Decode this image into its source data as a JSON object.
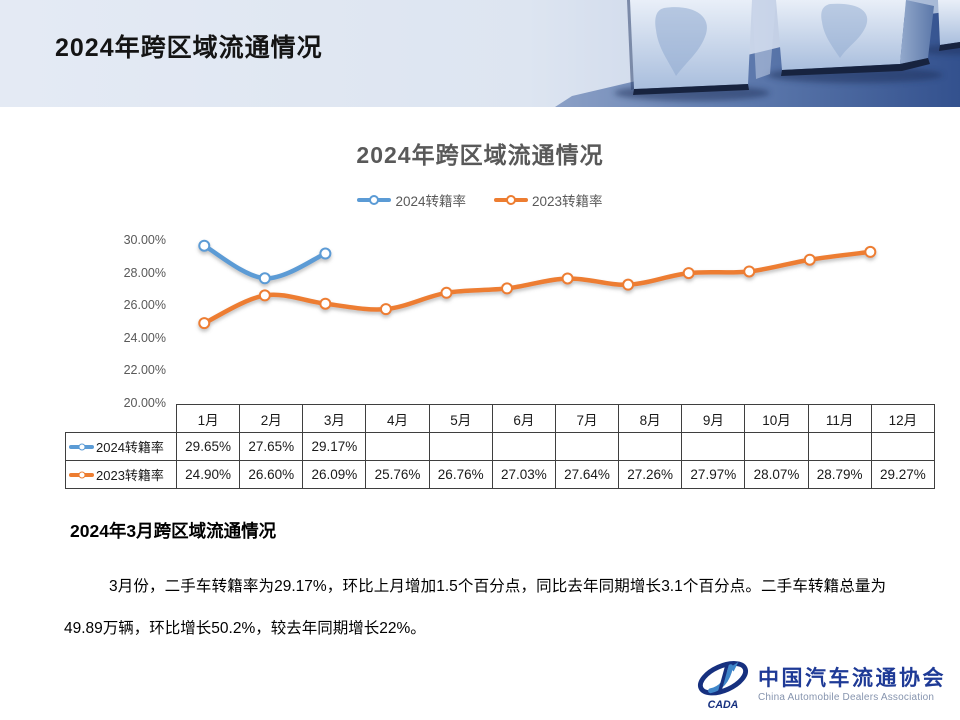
{
  "header": {
    "title": "2024年跨区域流通情况"
  },
  "chart": {
    "title": "2024年跨区域流通情况"
  },
  "chart_data": {
    "type": "line",
    "title": "2024年跨区域流通情况",
    "categories": [
      "1月",
      "2月",
      "3月",
      "4月",
      "5月",
      "6月",
      "7月",
      "8月",
      "9月",
      "10月",
      "11月",
      "12月"
    ],
    "series": [
      {
        "name": "2024转籍率",
        "color": "#5B9BD5",
        "values": [
          29.65,
          27.65,
          29.17,
          null,
          null,
          null,
          null,
          null,
          null,
          null,
          null,
          null
        ]
      },
      {
        "name": "2023转籍率",
        "color": "#ED7D31",
        "values": [
          24.9,
          26.6,
          26.09,
          25.76,
          26.76,
          27.03,
          27.64,
          27.26,
          27.97,
          28.07,
          28.79,
          29.27
        ]
      }
    ],
    "ylim": [
      20,
      30
    ],
    "yticks": [
      "30.00%",
      "28.00%",
      "26.00%",
      "24.00%",
      "22.00%",
      "20.00%"
    ],
    "grid": false,
    "smooth": true,
    "legend_position": "top"
  },
  "table": {
    "columns": [
      "1月",
      "2月",
      "3月",
      "4月",
      "5月",
      "6月",
      "7月",
      "8月",
      "9月",
      "10月",
      "11月",
      "12月"
    ],
    "rows": [
      {
        "label": "2024转籍率",
        "color": "#5B9BD5",
        "values": [
          "29.65%",
          "27.65%",
          "29.17%",
          "",
          "",
          "",
          "",
          "",
          "",
          "",
          "",
          ""
        ]
      },
      {
        "label": "2023转籍率",
        "color": "#ED7D31",
        "values": [
          "24.90%",
          "26.60%",
          "26.09%",
          "25.76%",
          "26.76%",
          "27.03%",
          "27.64%",
          "27.26%",
          "27.97%",
          "28.07%",
          "28.79%",
          "29.27%"
        ]
      }
    ]
  },
  "section": {
    "heading": "2024年3月跨区域流通情况",
    "paragraph": "3月份，二手车转籍率为29.17%，环比上月增加1.5个百分点，同比去年同期增长3.1个百分点。二手车转籍总量为49.89万辆，环比增长50.2%，较去年同期增长22%。"
  },
  "logo": {
    "emblem_text": "CADA",
    "name_cn": "中国汽车流通协会",
    "name_en": "China Automobile Dealers Association"
  },
  "colors": {
    "series_2024": "#5B9BD5",
    "series_2023": "#ED7D31",
    "chart_text": "#595959",
    "logo_blue": "#1e3a96",
    "banner_deep_blue": "#33518e"
  }
}
